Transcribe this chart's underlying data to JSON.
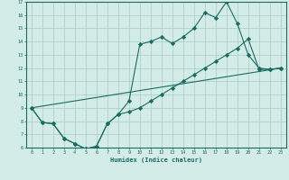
{
  "xlabel": "Humidex (Indice chaleur)",
  "bg_color": "#d4ece8",
  "grid_color": "#a8ccc8",
  "line_color": "#1a6b60",
  "xlim": [
    -0.5,
    23.5
  ],
  "ylim": [
    6,
    17
  ],
  "xticks": [
    0,
    1,
    2,
    3,
    4,
    5,
    6,
    7,
    8,
    9,
    10,
    11,
    12,
    13,
    14,
    15,
    16,
    17,
    18,
    19,
    20,
    21,
    22,
    23
  ],
  "yticks": [
    6,
    7,
    8,
    9,
    10,
    11,
    12,
    13,
    14,
    15,
    16,
    17
  ],
  "line1_x": [
    0,
    1,
    2,
    3,
    4,
    5,
    6,
    7,
    8,
    9,
    10,
    11,
    12,
    13,
    14,
    15,
    16,
    17,
    18,
    19,
    20,
    21,
    22,
    23
  ],
  "line1_y": [
    9.0,
    7.9,
    7.8,
    6.7,
    6.3,
    5.9,
    6.1,
    7.8,
    8.5,
    9.5,
    13.8,
    14.0,
    14.35,
    13.85,
    14.35,
    15.0,
    16.2,
    15.8,
    17.0,
    15.35,
    13.0,
    12.0,
    11.9,
    12.0
  ],
  "line2_x": [
    0,
    23
  ],
  "line2_y": [
    9.0,
    12.0
  ],
  "line3_x": [
    0,
    1,
    2,
    3,
    4,
    5,
    6,
    7,
    8,
    9,
    10,
    11,
    12,
    13,
    14,
    15,
    16,
    17,
    18,
    19,
    20,
    21,
    22,
    23
  ],
  "line3_y": [
    9.0,
    7.9,
    7.8,
    6.7,
    6.3,
    5.9,
    6.1,
    7.8,
    8.5,
    8.7,
    9.0,
    9.5,
    10.0,
    10.5,
    11.0,
    11.5,
    12.0,
    12.5,
    13.0,
    13.5,
    14.2,
    11.9,
    11.9,
    12.0
  ]
}
